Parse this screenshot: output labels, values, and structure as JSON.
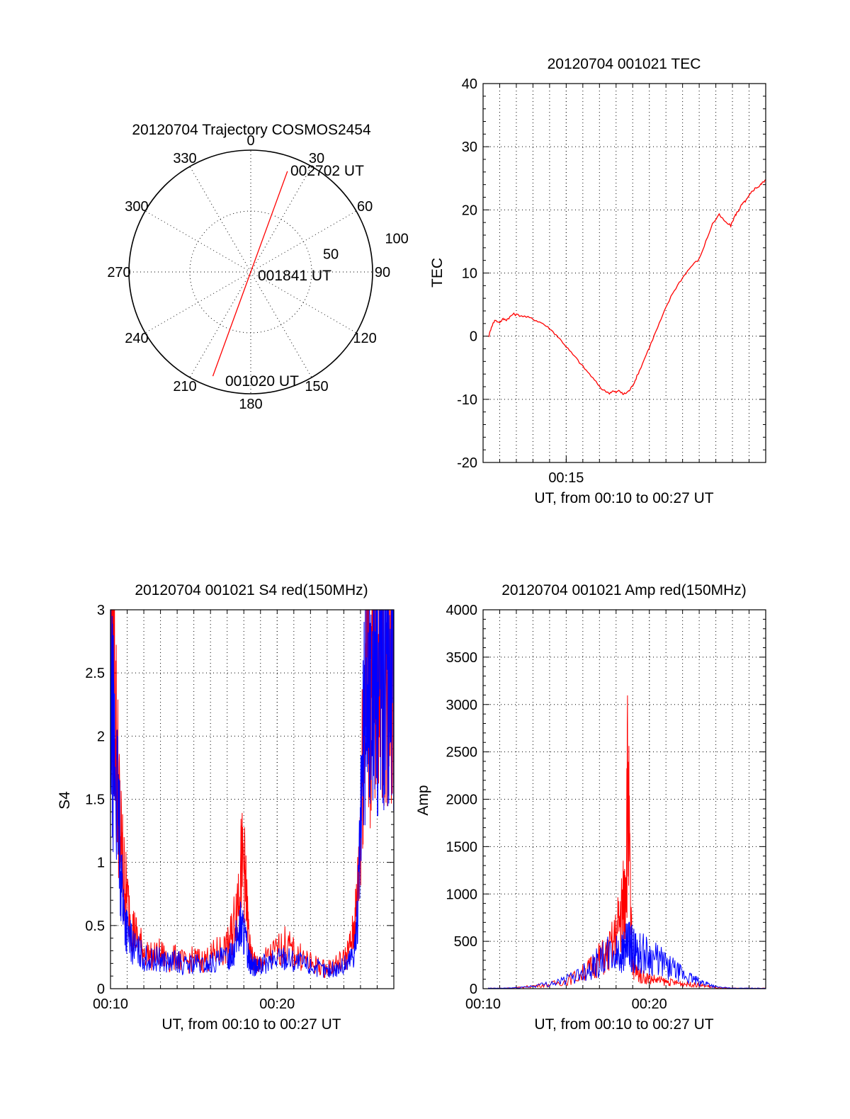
{
  "colors": {
    "red": "#ff0000",
    "blue": "#0000ff",
    "axis": "#000000"
  },
  "chart_data": [
    {
      "type": "polar",
      "title": "20120704 Trajectory COSMOS2454",
      "angle_labels": [
        "0",
        "30",
        "60",
        "90",
        "120",
        "150",
        "180",
        "210",
        "240",
        "270",
        "300",
        "330"
      ],
      "angles": [
        0,
        30,
        60,
        90,
        120,
        150,
        180,
        210,
        240,
        270,
        300,
        330
      ],
      "radius_labels": [
        "50",
        "100"
      ],
      "radius_values": [
        50,
        100
      ],
      "rmax": 100,
      "trajectory": {
        "color": "red",
        "points": [
          {
            "az": 200,
            "r": 91
          },
          {
            "az": 180,
            "r": 0
          },
          {
            "az": 20,
            "r": 88
          }
        ]
      },
      "annotations": [
        "002702 UT",
        "001841 UT",
        "001020 UT"
      ]
    },
    {
      "type": "line",
      "title": "20120704 001021 TEC",
      "xlabel": "UT, from 00:10 to 00:27 UT",
      "ylabel": "TEC",
      "xlim": [
        10.0,
        27.0
      ],
      "ylim": [
        -20,
        40
      ],
      "xticks": [
        15
      ],
      "xtick_labels": [
        "00:15"
      ],
      "yticks": [
        -20,
        -10,
        0,
        10,
        20,
        30,
        40
      ],
      "ytick_labels": [
        "-20",
        "-10",
        "0",
        "10",
        "20",
        "30",
        "40"
      ],
      "grid": true,
      "series": [
        {
          "color": "red",
          "x": [
            10.35,
            10.5,
            10.7,
            11.0,
            11.2,
            11.4,
            11.6,
            11.8,
            12.0,
            12.4,
            12.8,
            13.2,
            13.6,
            14.0,
            14.4,
            14.8,
            15.2,
            15.6,
            16.0,
            16.4,
            16.8,
            17.2,
            17.6,
            17.8,
            18.0,
            18.2,
            18.4,
            18.6,
            18.8,
            19.0,
            19.2,
            19.4,
            19.8,
            20.2,
            20.6,
            21.0,
            21.4,
            21.8,
            22.2,
            22.6,
            23.0,
            23.4,
            23.8,
            24.2,
            24.6,
            24.9,
            25.1,
            25.25,
            25.4,
            25.55,
            25.7,
            25.85,
            26.0,
            26.2,
            26.4,
            26.6,
            26.8,
            27.0
          ],
          "y": [
            0.0,
            1.5,
            2.5,
            2.2,
            2.7,
            2.6,
            3.0,
            3.5,
            3.4,
            3.2,
            2.9,
            2.5,
            2.0,
            1.2,
            0.2,
            -1.0,
            -2.3,
            -3.5,
            -4.8,
            -6.0,
            -7.3,
            -8.5,
            -9.0,
            -8.7,
            -8.9,
            -8.6,
            -9.2,
            -9.0,
            -8.6,
            -7.8,
            -6.7,
            -5.5,
            -3.0,
            -0.5,
            2.0,
            4.5,
            6.8,
            8.5,
            10.0,
            11.3,
            12.2,
            15.0,
            17.8,
            19.2,
            18.0,
            17.5,
            18.8,
            19.5,
            20.0,
            20.8,
            21.2,
            21.6,
            22.2,
            23.0,
            23.5,
            23.7,
            24.3,
            24.8
          ]
        }
      ]
    },
    {
      "type": "line",
      "title": "20120704 001021 S4 red(150MHz)",
      "xlabel": "UT, from 00:10 to 00:27 UT",
      "ylabel": "S4",
      "xlim": [
        10.0,
        27.0
      ],
      "ylim": [
        0,
        3
      ],
      "xticks": [
        10,
        20
      ],
      "xtick_labels": [
        "00:10",
        "00:20"
      ],
      "yticks": [
        0,
        0.5,
        1,
        1.5,
        2,
        2.5,
        3
      ],
      "ytick_labels": [
        "0",
        "0.5",
        "1",
        "1.5",
        "2",
        "2.5",
        "3"
      ],
      "grid": true,
      "series": [
        {
          "color": "red",
          "x": [
            10.0,
            10.2,
            10.4,
            10.6,
            10.8,
            11.0,
            11.3,
            11.6,
            12.0,
            12.5,
            13.0,
            13.5,
            14.0,
            14.5,
            15.0,
            15.5,
            16.0,
            16.5,
            17.0,
            17.3,
            17.6,
            17.8,
            18.0,
            18.2,
            18.4,
            18.6,
            18.8,
            19.0,
            19.5,
            20.0,
            20.5,
            21.0,
            21.5,
            22.0,
            22.5,
            23.0,
            23.5,
            24.0,
            24.3,
            24.6,
            24.8,
            25.0,
            25.2,
            25.4,
            25.6,
            25.8,
            26.0,
            26.2,
            26.4,
            26.6,
            26.8,
            27.0
          ],
          "y": [
            3.0,
            2.6,
            1.8,
            1.2,
            0.9,
            0.7,
            0.5,
            0.4,
            0.3,
            0.25,
            0.28,
            0.22,
            0.25,
            0.2,
            0.24,
            0.22,
            0.25,
            0.3,
            0.32,
            0.45,
            0.7,
            0.95,
            1.0,
            0.6,
            0.25,
            0.22,
            0.18,
            0.2,
            0.25,
            0.3,
            0.35,
            0.28,
            0.25,
            0.2,
            0.18,
            0.15,
            0.2,
            0.22,
            0.3,
            0.45,
            0.7,
            1.3,
            2.2,
            2.6,
            2.1,
            2.7,
            2.4,
            2.9,
            2.5,
            2.2,
            2.7,
            2.4
          ]
        },
        {
          "color": "blue",
          "x": [
            10.0,
            10.2,
            10.4,
            10.6,
            10.8,
            11.0,
            11.3,
            11.6,
            12.0,
            12.5,
            13.0,
            13.5,
            14.0,
            14.5,
            15.0,
            15.5,
            16.0,
            16.5,
            17.0,
            17.3,
            17.6,
            17.8,
            18.0,
            18.2,
            18.4,
            18.6,
            18.8,
            19.0,
            19.5,
            20.0,
            20.5,
            21.0,
            21.5,
            22.0,
            22.5,
            23.0,
            23.5,
            24.0,
            24.3,
            24.6,
            24.8,
            25.0,
            25.2,
            25.4,
            25.6,
            25.8,
            26.0,
            26.2,
            26.4,
            26.6,
            26.8,
            27.0
          ],
          "y": [
            2.2,
            1.9,
            1.5,
            1.0,
            0.6,
            0.45,
            0.35,
            0.3,
            0.25,
            0.22,
            0.24,
            0.2,
            0.22,
            0.18,
            0.2,
            0.18,
            0.2,
            0.22,
            0.24,
            0.3,
            0.4,
            0.5,
            0.45,
            0.3,
            0.2,
            0.18,
            0.16,
            0.18,
            0.2,
            0.24,
            0.26,
            0.22,
            0.2,
            0.18,
            0.16,
            0.14,
            0.16,
            0.18,
            0.22,
            0.3,
            0.5,
            1.2,
            2.0,
            2.4,
            2.2,
            2.6,
            2.3,
            2.8,
            2.4,
            2.5,
            2.6,
            2.3
          ]
        }
      ]
    },
    {
      "type": "line",
      "title": "20120704 001021 Amp red(150MHz)",
      "xlabel": "UT, from 00:10 to 00:27 UT",
      "ylabel": "Amp",
      "xlim": [
        10.0,
        27.0
      ],
      "ylim": [
        0,
        4000
      ],
      "xticks": [
        10,
        20
      ],
      "xtick_labels": [
        "00:10",
        "00:20"
      ],
      "yticks": [
        0,
        500,
        1000,
        1500,
        2000,
        2500,
        3000,
        3500,
        4000
      ],
      "ytick_labels": [
        "0",
        "500",
        "1000",
        "1500",
        "2000",
        "2500",
        "3000",
        "3500",
        "4000"
      ],
      "grid": true,
      "series": [
        {
          "color": "red",
          "x": [
            10.3,
            11.0,
            12.0,
            13.0,
            14.0,
            15.0,
            16.0,
            16.5,
            17.0,
            17.5,
            18.0,
            18.3,
            18.5,
            18.7,
            18.9,
            19.0,
            19.2,
            19.5,
            20.0,
            20.5,
            21.0,
            21.5,
            22.0,
            22.5,
            23.0,
            23.5,
            24.0,
            25.0,
            26.0,
            27.0
          ],
          "y": [
            5,
            5,
            10,
            30,
            50,
            90,
            180,
            250,
            350,
            400,
            600,
            900,
            1000,
            2400,
            700,
            300,
            200,
            150,
            120,
            100,
            80,
            70,
            60,
            50,
            40,
            30,
            10,
            5,
            5,
            5
          ]
        },
        {
          "color": "blue",
          "x": [
            10.3,
            11.0,
            12.0,
            13.0,
            14.0,
            15.0,
            16.0,
            16.5,
            17.0,
            17.5,
            18.0,
            18.3,
            18.5,
            18.7,
            18.9,
            19.0,
            19.2,
            19.5,
            20.0,
            20.5,
            21.0,
            21.5,
            22.0,
            22.5,
            23.0,
            23.5,
            24.0,
            25.0,
            26.0,
            27.0
          ],
          "y": [
            5,
            5,
            10,
            30,
            60,
            100,
            200,
            260,
            320,
            380,
            400,
            420,
            450,
            500,
            480,
            460,
            440,
            420,
            380,
            330,
            280,
            220,
            160,
            120,
            80,
            60,
            20,
            5,
            5,
            5
          ]
        }
      ]
    }
  ]
}
